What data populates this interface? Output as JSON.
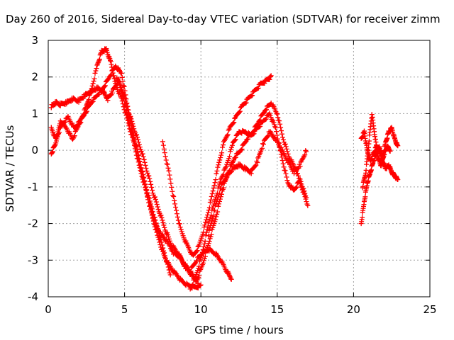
{
  "chart_data": {
    "type": "scatter",
    "title": "Day 260 of 2016, Sidereal Day-to-day VTEC variation (SDTVAR) for receiver zimm",
    "xlabel": "GPS time / hours",
    "ylabel": "SDTVAR / TECUs",
    "xlim": [
      0,
      25
    ],
    "ylim": [
      -4,
      3
    ],
    "xticks": [
      "0",
      "5",
      "10",
      "15",
      "20",
      "25"
    ],
    "yticks": [
      "-4",
      "-3",
      "-2",
      "-1",
      "0",
      "1",
      "2",
      "3"
    ],
    "grid": true,
    "marker": "+",
    "color": "#ff0000",
    "series": [
      {
        "x": [
          0.2,
          0.5,
          0.8,
          1.2,
          1.6,
          2.0,
          2.4,
          2.8,
          3.2,
          3.6,
          3.9,
          4.2,
          4.6,
          5.0,
          5.4,
          5.8,
          6.2,
          6.6,
          7.0,
          7.4,
          7.8,
          8.2,
          8.6,
          9.0,
          9.4,
          9.8
        ],
        "y": [
          1.2,
          1.3,
          1.25,
          1.3,
          1.4,
          1.35,
          1.5,
          1.6,
          1.7,
          1.6,
          1.4,
          1.6,
          1.9,
          1.3,
          0.6,
          0.0,
          -0.7,
          -1.4,
          -2.0,
          -2.3,
          -2.5,
          -2.8,
          -2.9,
          -3.2,
          -3.4,
          -3.6
        ]
      },
      {
        "x": [
          0.2,
          0.5,
          0.9,
          1.3,
          1.7,
          2.1,
          2.5,
          2.8,
          3.2,
          3.5,
          3.8,
          4.1,
          4.4,
          4.8,
          5.2,
          5.6,
          6.0,
          6.4,
          6.8,
          7.2,
          7.6,
          8.0,
          8.4,
          8.8,
          9.2,
          9.6,
          10.0
        ],
        "y": [
          0.6,
          0.3,
          0.7,
          0.9,
          0.6,
          0.8,
          1.2,
          1.6,
          2.3,
          2.7,
          2.75,
          2.4,
          1.8,
          1.4,
          0.8,
          0.2,
          -0.5,
          -1.1,
          -1.8,
          -2.4,
          -2.9,
          -3.2,
          -3.4,
          -3.6,
          -3.7,
          -3.75,
          -3.7
        ]
      },
      {
        "x": [
          0.2,
          0.5,
          0.8,
          1.2,
          1.6,
          2.0,
          2.4,
          2.8,
          3.2,
          3.6,
          4.0,
          4.4,
          4.8,
          5.2,
          5.6,
          6.0,
          6.4,
          6.8,
          7.2,
          7.6,
          8.0
        ],
        "y": [
          -0.1,
          0.2,
          0.8,
          0.6,
          0.3,
          0.7,
          1.0,
          1.3,
          1.5,
          1.7,
          2.0,
          2.3,
          2.1,
          1.2,
          0.4,
          -0.3,
          -1.0,
          -1.6,
          -2.2,
          -2.8,
          -3.4
        ]
      },
      {
        "x": [
          4.5,
          4.9,
          5.3,
          5.7,
          6.1,
          6.5,
          6.9,
          7.3,
          7.7,
          8.1,
          8.5,
          8.9,
          9.3,
          9.7,
          10.1,
          10.5,
          10.9,
          11.3,
          11.7,
          12.0
        ],
        "y": [
          2.0,
          1.6,
          1.0,
          0.5,
          0.0,
          -0.6,
          -1.2,
          -1.7,
          -2.2,
          -2.6,
          -2.8,
          -3.1,
          -3.3,
          -3.0,
          -2.8,
          -2.7,
          -2.8,
          -3.0,
          -3.3,
          -3.5
        ]
      },
      {
        "x": [
          7.5,
          7.9,
          8.3,
          8.7,
          9.1,
          9.5,
          9.9,
          10.3,
          10.7,
          11.1,
          11.5,
          11.9,
          12.3,
          12.7,
          13.1,
          13.5,
          13.9,
          14.3,
          14.6
        ],
        "y": [
          0.2,
          -0.6,
          -1.5,
          -2.2,
          -2.6,
          -2.9,
          -2.6,
          -2.0,
          -1.3,
          -0.5,
          0.2,
          0.6,
          0.9,
          1.2,
          1.4,
          1.6,
          1.8,
          1.9,
          2.0
        ]
      },
      {
        "x": [
          9.3,
          9.7,
          10.1,
          10.5,
          10.9,
          11.3,
          11.7,
          12.1,
          12.5,
          12.9,
          13.3,
          13.7,
          14.1,
          14.5,
          14.9,
          15.3,
          15.7,
          16.1,
          16.5,
          16.9
        ],
        "y": [
          -3.8,
          -3.4,
          -2.8,
          -2.0,
          -1.4,
          -0.8,
          -0.4,
          0.2,
          0.5,
          0.5,
          0.4,
          0.6,
          0.8,
          1.0,
          0.6,
          -0.2,
          -0.9,
          -1.1,
          -0.8,
          -1.3
        ]
      },
      {
        "x": [
          9.8,
          10.2,
          10.6,
          11.0,
          11.4,
          11.8,
          12.2,
          12.6,
          13.0,
          13.4,
          13.8,
          14.2,
          14.6,
          15.0,
          15.4,
          15.8,
          16.2,
          16.6,
          17.0
        ],
        "y": [
          -3.5,
          -3.0,
          -2.4,
          -1.8,
          -1.1,
          -0.6,
          -0.2,
          0.0,
          0.3,
          0.5,
          0.8,
          1.1,
          1.3,
          1.0,
          0.3,
          -0.2,
          -0.5,
          -1.0,
          -1.5
        ]
      },
      {
        "x": [
          10.5,
          10.9,
          11.3,
          11.7,
          12.1,
          12.5,
          12.9,
          13.3,
          13.7,
          14.1,
          14.5,
          14.9,
          15.3,
          15.7,
          16.1,
          16.5,
          16.9
        ],
        "y": [
          -2.3,
          -1.6,
          -1.0,
          -0.7,
          -0.5,
          -0.4,
          -0.5,
          -0.6,
          -0.3,
          0.2,
          0.5,
          0.3,
          0.0,
          -0.3,
          -0.6,
          -0.4,
          0.0
        ]
      },
      {
        "x": [
          20.5,
          20.7,
          20.9,
          21.1,
          21.3,
          21.5,
          21.7,
          21.9,
          22.1,
          22.3,
          22.5,
          22.7,
          22.9
        ],
        "y": [
          0.3,
          0.5,
          0.0,
          -0.3,
          -0.1,
          0.1,
          0.0,
          -0.2,
          0.2,
          0.5,
          0.6,
          0.3,
          0.1
        ]
      },
      {
        "x": [
          20.5,
          20.7,
          20.9,
          21.1,
          21.3,
          21.5,
          21.7,
          21.9,
          22.1,
          22.3,
          22.5,
          22.7,
          22.9
        ],
        "y": [
          -2.0,
          -1.4,
          -0.9,
          -0.6,
          -0.3,
          -0.1,
          0.1,
          -0.3,
          -0.5,
          -0.4,
          -0.6,
          -0.7,
          -0.8
        ]
      },
      {
        "x": [
          20.6,
          20.8,
          21.0,
          21.2,
          21.4,
          21.6,
          21.8,
          22.0,
          22.2,
          22.4
        ],
        "y": [
          -1.0,
          -0.6,
          0.2,
          1.0,
          0.4,
          -0.2,
          -0.4,
          -0.1,
          0.1,
          0.0
        ]
      }
    ]
  }
}
